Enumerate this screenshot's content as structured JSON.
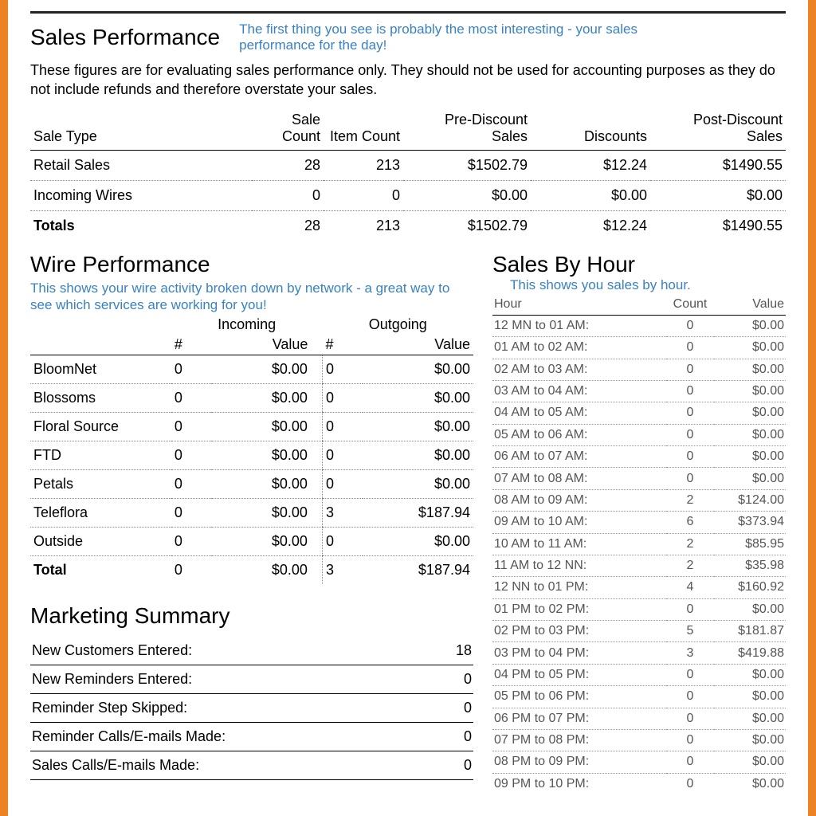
{
  "colors": {
    "frame_border": "#ed8224",
    "note_color": "#3882c4",
    "text": "#000000",
    "muted": "#555555",
    "dotted": "#888888",
    "background": "#ffffff"
  },
  "typography": {
    "body_family": "Arial",
    "note_family": "Comic Sans MS",
    "section_fontsize_pt": 21,
    "body_fontsize_pt": 14,
    "sbh_fontsize_pt": 12
  },
  "sales_performance": {
    "title": "Sales Performance",
    "note": "The first thing you see is probably the most interesting - your sales performance for the day!",
    "description": "These figures are for evaluating sales performance only. They should not be used for accounting purposes as they do not include refunds and therefore overstate your sales.",
    "columns": [
      "Sale Type",
      "Sale Count",
      "Item Count",
      "Pre-Discount Sales",
      "Discounts",
      "Post-Discount Sales"
    ],
    "rows": [
      {
        "type": "Retail Sales",
        "sale_count": "28",
        "item_count": "213",
        "pre": "$1502.79",
        "disc": "$12.24",
        "post": "$1490.55"
      },
      {
        "type": "Incoming Wires",
        "sale_count": "0",
        "item_count": "0",
        "pre": "$0.00",
        "disc": "$0.00",
        "post": "$0.00"
      }
    ],
    "totals": {
      "type": "Totals",
      "sale_count": "28",
      "item_count": "213",
      "pre": "$1502.79",
      "disc": "$12.24",
      "post": "$1490.55"
    }
  },
  "wire_performance": {
    "title": "Wire Performance",
    "note": "This shows your wire activity broken down by network - a great way to see which services are working for you!",
    "group_headers": [
      "Incoming",
      "Outgoing"
    ],
    "sub_headers": [
      "#",
      "Value",
      "#",
      "Value"
    ],
    "rows": [
      {
        "name": "BloomNet",
        "in_n": "0",
        "in_v": "$0.00",
        "out_n": "0",
        "out_v": "$0.00"
      },
      {
        "name": "Blossoms",
        "in_n": "0",
        "in_v": "$0.00",
        "out_n": "0",
        "out_v": "$0.00"
      },
      {
        "name": "Floral Source",
        "in_n": "0",
        "in_v": "$0.00",
        "out_n": "0",
        "out_v": "$0.00"
      },
      {
        "name": "FTD",
        "in_n": "0",
        "in_v": "$0.00",
        "out_n": "0",
        "out_v": "$0.00"
      },
      {
        "name": "Petals",
        "in_n": "0",
        "in_v": "$0.00",
        "out_n": "0",
        "out_v": "$0.00"
      },
      {
        "name": "Teleflora",
        "in_n": "0",
        "in_v": "$0.00",
        "out_n": "3",
        "out_v": "$187.94"
      },
      {
        "name": "Outside",
        "in_n": "0",
        "in_v": "$0.00",
        "out_n": "0",
        "out_v": "$0.00"
      }
    ],
    "totals": {
      "name": "Total",
      "in_n": "0",
      "in_v": "$0.00",
      "out_n": "3",
      "out_v": "$187.94"
    }
  },
  "marketing_summary": {
    "title": "Marketing Summary",
    "rows": [
      {
        "label": "New Customers Entered:",
        "value": "18"
      },
      {
        "label": "New Reminders Entered:",
        "value": "0"
      },
      {
        "label": "Reminder Step Skipped:",
        "value": "0"
      },
      {
        "label": "Reminder Calls/E-mails Made:",
        "value": "0"
      },
      {
        "label": "Sales Calls/E-mails Made:",
        "value": "0"
      }
    ]
  },
  "sales_by_hour": {
    "title": "Sales By Hour",
    "note": "This shows you sales by hour.",
    "columns": [
      "Hour",
      "Count",
      "Value"
    ],
    "rows": [
      {
        "hour": "12 MN to 01 AM:",
        "count": "0",
        "value": "$0.00"
      },
      {
        "hour": "01 AM to 02 AM:",
        "count": "0",
        "value": "$0.00"
      },
      {
        "hour": "02 AM to 03 AM:",
        "count": "0",
        "value": "$0.00"
      },
      {
        "hour": "03 AM to 04 AM:",
        "count": "0",
        "value": "$0.00"
      },
      {
        "hour": "04 AM to 05 AM:",
        "count": "0",
        "value": "$0.00"
      },
      {
        "hour": "05 AM to 06 AM:",
        "count": "0",
        "value": "$0.00"
      },
      {
        "hour": "06 AM to 07 AM:",
        "count": "0",
        "value": "$0.00"
      },
      {
        "hour": "07 AM to 08 AM:",
        "count": "0",
        "value": "$0.00"
      },
      {
        "hour": "08 AM to 09 AM:",
        "count": "2",
        "value": "$124.00"
      },
      {
        "hour": "09 AM to 10 AM:",
        "count": "6",
        "value": "$373.94"
      },
      {
        "hour": "10 AM to 11 AM:",
        "count": "2",
        "value": "$85.95"
      },
      {
        "hour": "11 AM to 12 NN:",
        "count": "2",
        "value": "$35.98"
      },
      {
        "hour": "12 NN to 01 PM:",
        "count": "4",
        "value": "$160.92"
      },
      {
        "hour": "01 PM to 02 PM:",
        "count": "0",
        "value": "$0.00"
      },
      {
        "hour": "02 PM to 03 PM:",
        "count": "5",
        "value": "$181.87"
      },
      {
        "hour": "03 PM to 04 PM:",
        "count": "3",
        "value": "$419.88"
      },
      {
        "hour": "04 PM to 05 PM:",
        "count": "0",
        "value": "$0.00"
      },
      {
        "hour": "05 PM to 06 PM:",
        "count": "0",
        "value": "$0.00"
      },
      {
        "hour": "06 PM to 07 PM:",
        "count": "0",
        "value": "$0.00"
      },
      {
        "hour": "07 PM to 08 PM:",
        "count": "0",
        "value": "$0.00"
      },
      {
        "hour": "08 PM to 09 PM:",
        "count": "0",
        "value": "$0.00"
      },
      {
        "hour": "09 PM to 10 PM:",
        "count": "0",
        "value": "$0.00"
      }
    ]
  }
}
